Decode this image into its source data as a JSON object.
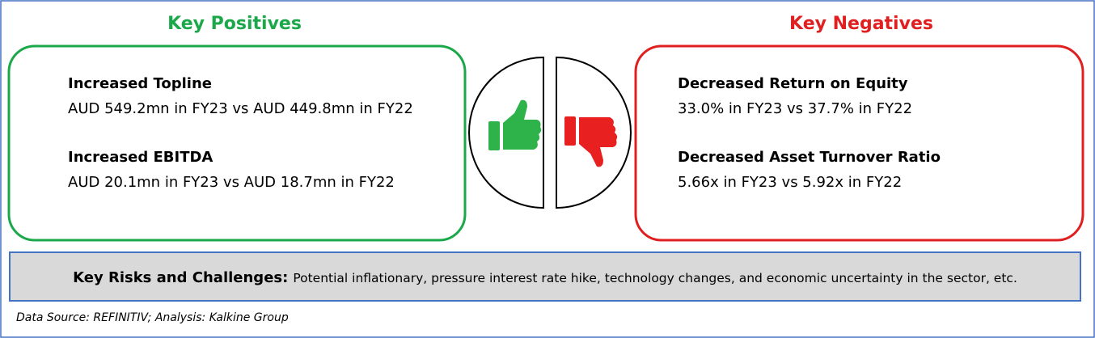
{
  "positives": {
    "title": "Key Positives",
    "items": [
      {
        "heading": "Increased Topline",
        "detail": "AUD 549.2mn in FY23 vs AUD 449.8mn in FY22"
      },
      {
        "heading": "Increased EBITDA",
        "detail": "AUD 20.1mn in FY23 vs AUD 18.7mn in FY22"
      }
    ]
  },
  "negatives": {
    "title": "Key Negatives",
    "items": [
      {
        "heading": "Decreased Return on Equity",
        "detail": "33.0% in FY23 vs 37.7% in FY22"
      },
      {
        "heading": "Decreased Asset Turnover Ratio",
        "detail": "5.66x in FY23 vs 5.92x in FY22"
      }
    ]
  },
  "risks": {
    "label": "Key Risks and Challenges:",
    "text": "Potential inflationary, pressure interest rate hike, technology changes, and economic uncertainty in the sector, etc."
  },
  "source": "Data Source: REFINITIV; Analysis: Kalkine Group"
}
